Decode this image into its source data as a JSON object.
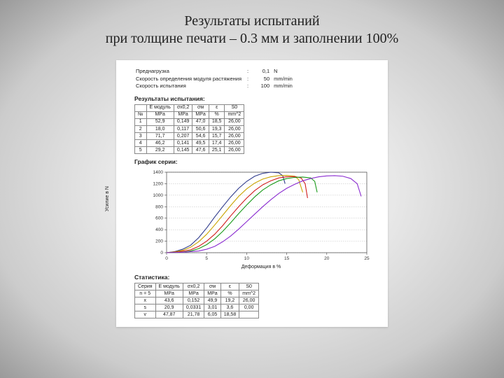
{
  "title_line1": "Результаты испытаний",
  "title_line2": "при толщине печати – 0.3 мм и заполнении 100%",
  "params": [
    {
      "label": "Преднагрузка",
      "value": "0,1",
      "unit": "N"
    },
    {
      "label": "Скорость определения модуля растяжения",
      "value": "50",
      "unit": "mm/min"
    },
    {
      "label": "Скорость испытания",
      "value": "100",
      "unit": "mm/min"
    }
  ],
  "results_heading": "Результаты испытания:",
  "results_table": {
    "head_row1": [
      "",
      "E модуль",
      "σx0,2",
      "σм",
      "ε",
      "S0"
    ],
    "head_row2": [
      "№",
      "MPa",
      "MPa",
      "MPa",
      "%",
      "mm^2"
    ],
    "rows": [
      [
        "1",
        "52,9",
        "0,149",
        "47,0",
        "18,5",
        "26,00"
      ],
      [
        "2",
        "18,0",
        "0,117",
        "50,6",
        "19,3",
        "26,00"
      ],
      [
        "3",
        "71,7",
        "0,207",
        "54,6",
        "15,7",
        "26,00"
      ],
      [
        "4",
        "46,2",
        "0,141",
        "49,5",
        "17,4",
        "26,00"
      ],
      [
        "5",
        "29,2",
        "0,145",
        "47,6",
        "25,1",
        "26,00"
      ]
    ]
  },
  "chart_heading": "График серии:",
  "chart": {
    "type": "line",
    "xlabel": "Деформация в %",
    "ylabel": "Усилие в N",
    "xlim": [
      0,
      25
    ],
    "ylim": [
      0,
      1400
    ],
    "xtick_step": 5,
    "ytick_step": 200,
    "axis_color": "#444",
    "grid_color": "#aaa",
    "tick_font": 6.5,
    "label_font": 7,
    "background_color": "#ffffff",
    "line_width": 1.1,
    "series": [
      {
        "color": "#2e3a8c",
        "points": [
          [
            0,
            0
          ],
          [
            1,
            20
          ],
          [
            2,
            60
          ],
          [
            3,
            130
          ],
          [
            4,
            260
          ],
          [
            5,
            430
          ],
          [
            6,
            620
          ],
          [
            7,
            800
          ],
          [
            8,
            970
          ],
          [
            9,
            1120
          ],
          [
            10,
            1240
          ],
          [
            11,
            1330
          ],
          [
            12,
            1380
          ],
          [
            13,
            1400
          ],
          [
            14,
            1390
          ],
          [
            14.5,
            1340
          ],
          [
            14.8,
            1200
          ]
        ]
      },
      {
        "color": "#c9a400",
        "points": [
          [
            0,
            0
          ],
          [
            1,
            15
          ],
          [
            2,
            40
          ],
          [
            3,
            95
          ],
          [
            4,
            190
          ],
          [
            5,
            320
          ],
          [
            6,
            480
          ],
          [
            7,
            650
          ],
          [
            8,
            820
          ],
          [
            9,
            980
          ],
          [
            10,
            1110
          ],
          [
            11,
            1210
          ],
          [
            12,
            1280
          ],
          [
            13,
            1320
          ],
          [
            14,
            1340
          ],
          [
            15,
            1345
          ],
          [
            16,
            1330
          ],
          [
            16.5,
            1270
          ],
          [
            17,
            1050
          ]
        ]
      },
      {
        "color": "#d11b1b",
        "points": [
          [
            0,
            0
          ],
          [
            1.5,
            15
          ],
          [
            3,
            50
          ],
          [
            4,
            110
          ],
          [
            5,
            200
          ],
          [
            6,
            320
          ],
          [
            7,
            470
          ],
          [
            8,
            640
          ],
          [
            9,
            800
          ],
          [
            10,
            950
          ],
          [
            11,
            1080
          ],
          [
            12,
            1180
          ],
          [
            13,
            1250
          ],
          [
            14,
            1300
          ],
          [
            15,
            1320
          ],
          [
            16,
            1325
          ],
          [
            16.8,
            1300
          ],
          [
            17.3,
            1200
          ],
          [
            17.6,
            950
          ]
        ]
      },
      {
        "color": "#1a9b1a",
        "points": [
          [
            0,
            0
          ],
          [
            2,
            10
          ],
          [
            3,
            30
          ],
          [
            4,
            70
          ],
          [
            5,
            140
          ],
          [
            6,
            240
          ],
          [
            7,
            370
          ],
          [
            8,
            520
          ],
          [
            9,
            680
          ],
          [
            10,
            830
          ],
          [
            11,
            970
          ],
          [
            12,
            1090
          ],
          [
            13,
            1180
          ],
          [
            14,
            1250
          ],
          [
            15,
            1290
          ],
          [
            16,
            1310
          ],
          [
            17,
            1315
          ],
          [
            18,
            1300
          ],
          [
            18.5,
            1240
          ],
          [
            18.8,
            1050
          ]
        ]
      },
      {
        "color": "#8a2bd0",
        "points": [
          [
            0,
            0
          ],
          [
            2,
            8
          ],
          [
            4,
            30
          ],
          [
            5,
            60
          ],
          [
            6,
            110
          ],
          [
            7,
            190
          ],
          [
            8,
            290
          ],
          [
            9,
            410
          ],
          [
            10,
            540
          ],
          [
            11,
            670
          ],
          [
            12,
            800
          ],
          [
            13,
            920
          ],
          [
            14,
            1030
          ],
          [
            15,
            1120
          ],
          [
            16,
            1190
          ],
          [
            17,
            1250
          ],
          [
            18,
            1290
          ],
          [
            19,
            1320
          ],
          [
            20,
            1335
          ],
          [
            21,
            1340
          ],
          [
            22,
            1330
          ],
          [
            23,
            1290
          ],
          [
            23.8,
            1200
          ],
          [
            24.3,
            980
          ]
        ]
      }
    ]
  },
  "stats_heading": "Статистика:",
  "stats_table": {
    "head_row1": [
      "Серия",
      "E модуль",
      "σx0,2",
      "σм",
      "ε",
      "S0"
    ],
    "head_row2": [
      "n = 5",
      "MPa",
      "MPa",
      "MPa",
      "%",
      "mm^2"
    ],
    "rows": [
      [
        "x",
        "43,6",
        "0,152",
        "49,9",
        "19,2",
        "26,00"
      ],
      [
        "s",
        "20,9",
        "0,0331",
        "3,01",
        "3,6",
        "0,00"
      ],
      [
        "v",
        "47,87",
        "21,78",
        "6,05",
        "18,58",
        ""
      ]
    ]
  }
}
